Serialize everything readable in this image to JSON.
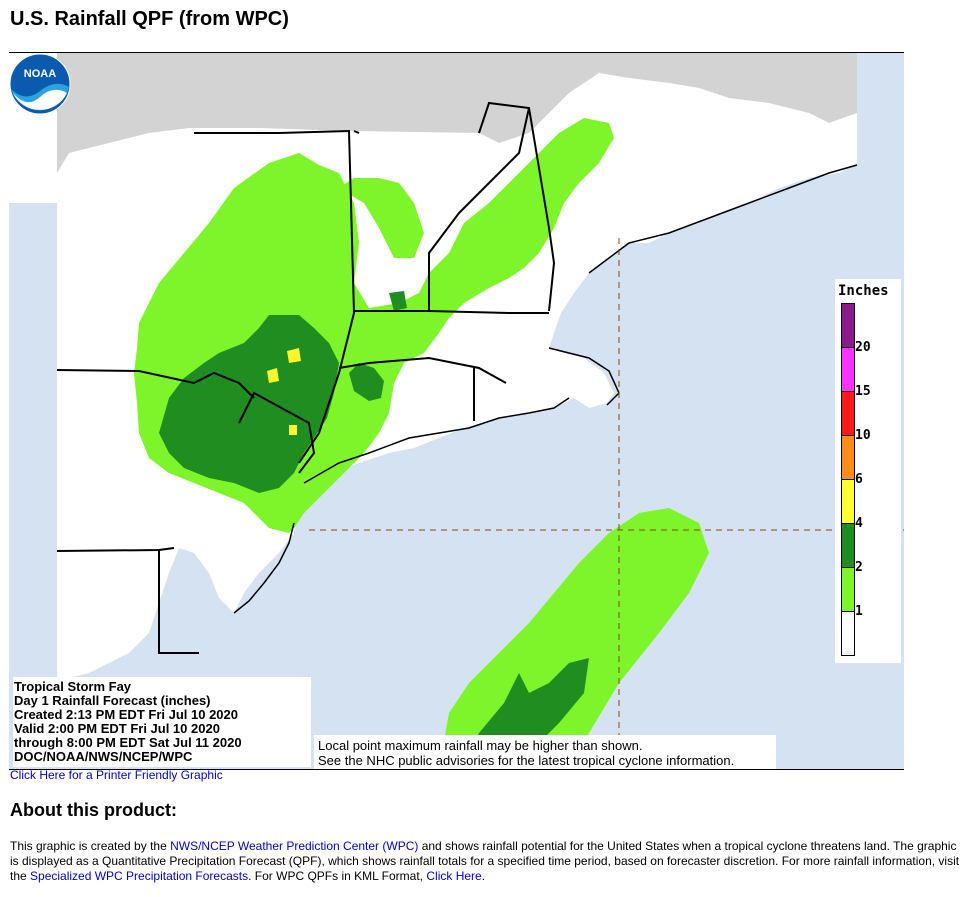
{
  "page": {
    "title": "U.S. Rainfall QPF (from WPC)"
  },
  "map": {
    "storm_name": "Tropical Storm Fay",
    "product_line": "Day 1 Rainfall Forecast (inches)",
    "created": "Created 2:13 PM EDT Fri Jul 10 2020",
    "valid": "Valid 2:00 PM EDT Fri Jul 10 2020",
    "through": "through 8:00 PM EDT Sat Jul 11 2020",
    "credit": "DOC/NOAA/NWS/NCEP/WPC",
    "disclaimer_1": "Local point maximum rainfall may be higher than shown.",
    "disclaimer_2": "See the NHC public advisories for the latest tropical cyclone information.",
    "logo_text": "NOAA",
    "colors": {
      "ocean": "#d4e2f1",
      "canada": "#d3d3d3",
      "land": "#ffffff",
      "light_green": "#7ef52b",
      "dark_green": "#1f8d1f",
      "yellow": "#f9f52c"
    }
  },
  "legend": {
    "title": "Inches",
    "labels": [
      "20",
      "15",
      "10",
      "6",
      "4",
      "2",
      "1"
    ],
    "colors": [
      "#8b1a8b",
      "#ff33ff",
      "#ff1a1a",
      "#ff8c1a",
      "#ffff33",
      "#1f8d1f",
      "#7ef52b",
      "#ffffff"
    ]
  },
  "links": {
    "printer_friendly": "Click Here for a Printer Friendly Graphic"
  },
  "about": {
    "heading": "About this product:",
    "text_1": "This graphic is created by the ",
    "link_wpc": "NWS/NCEP Weather Prediction Center (WPC)",
    "text_2": " and shows rainfall potential for the United States when a tropical cyclone threatens land. The graphic is displayed as a Quantitative Precipitation Forecast (QPF), which shows rainfall totals for a specified time period, based on forecaster discretion. For more rainfall information, visit the ",
    "link_specialized": "Specialized WPC Precipitation Forecasts",
    "text_3": ". For WPC QPFs in KML Format, ",
    "link_kml": "Click Here",
    "text_4": "."
  }
}
